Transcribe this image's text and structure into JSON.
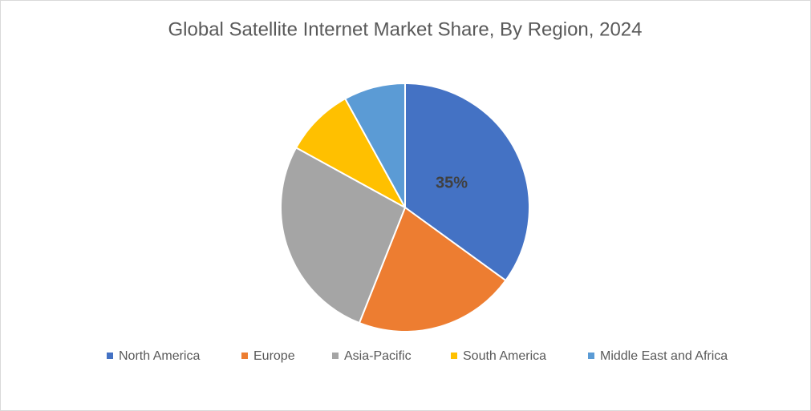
{
  "chart_data": {
    "type": "pie",
    "title": "Global Satellite Internet Market Share, By Region, 2024",
    "categories": [
      "North America",
      "Europe",
      "Asia-Pacific",
      "South America",
      "Middle East and Africa"
    ],
    "values": [
      35,
      21,
      27,
      9,
      8
    ],
    "value_labels": [
      "35%",
      null,
      null,
      null,
      null
    ],
    "colors": [
      "#4472c4",
      "#ed7d31",
      "#a5a5a5",
      "#ffc000",
      "#5b9bd5"
    ],
    "legend": "bottom"
  }
}
